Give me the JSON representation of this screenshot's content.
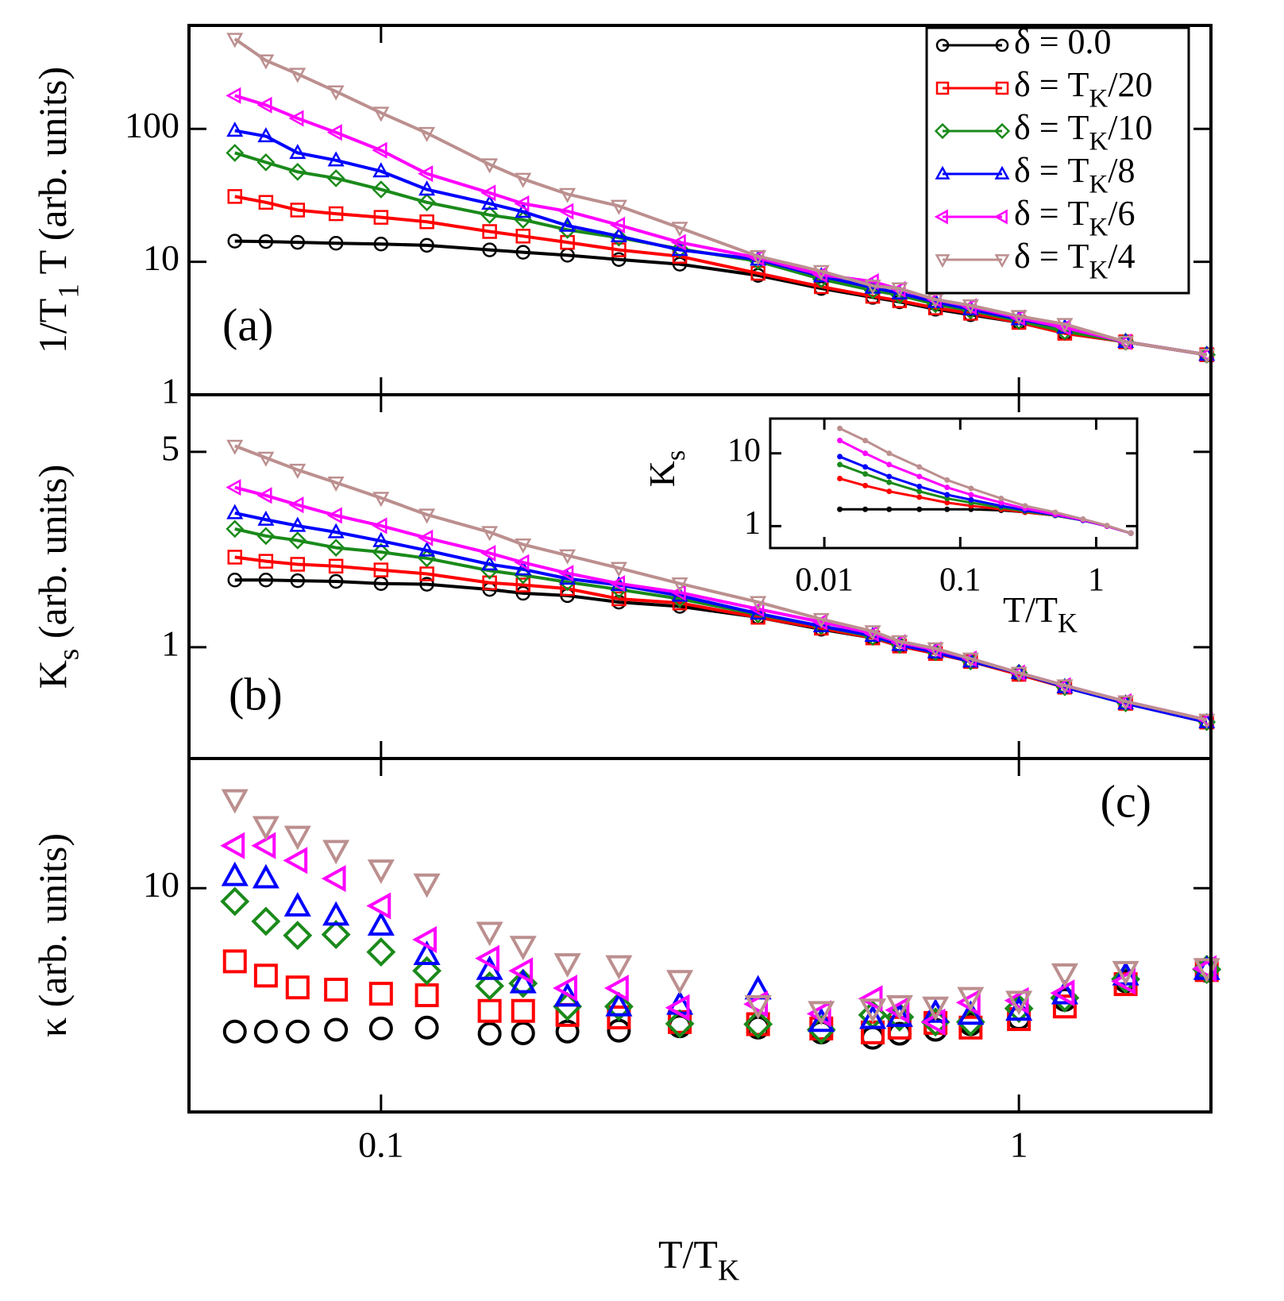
{
  "chart_data": [
    {
      "type": "line",
      "label": "(a)",
      "ylabel": [
        "1/T",
        "1",
        " T (arb. units)"
      ],
      "log_x": true,
      "log_y": true,
      "xlim": [
        0.05,
        2
      ],
      "ylim": [
        1,
        600
      ],
      "yticks": [
        1,
        10,
        100
      ],
      "legend": "upper right",
      "x": [
        0.059,
        0.066,
        0.074,
        0.085,
        0.1,
        0.118,
        0.148,
        0.167,
        0.196,
        0.236,
        0.294,
        0.39,
        0.49,
        0.59,
        0.65,
        0.74,
        0.84,
        1,
        1.18,
        1.47,
        1.97
      ],
      "series": [
        {
          "name": [
            "δ = 0.0"
          ],
          "color": "#000000",
          "marker": "circle",
          "values": [
            14.3,
            14.2,
            14.0,
            13.8,
            13.6,
            13.3,
            12.3,
            11.8,
            11.2,
            10.4,
            9.6,
            7.9,
            6.3,
            5.4,
            5.0,
            4.4,
            4.0,
            3.5,
            2.9,
            2.5,
            2.0
          ]
        },
        {
          "name": [
            "δ = T",
            "K",
            "/20"
          ],
          "color": "#ff0000",
          "marker": "square",
          "values": [
            31,
            28,
            24.5,
            23,
            21.6,
            20,
            16.9,
            15.6,
            14,
            12.3,
            11,
            8.2,
            6.5,
            5.5,
            5.1,
            4.5,
            4.1,
            3.5,
            2.9,
            2.5,
            2.0
          ]
        },
        {
          "name": [
            "δ = T",
            "K",
            "/10"
          ],
          "color": "#1a8a1a",
          "marker": "diamond",
          "values": [
            66,
            56,
            47.5,
            42.5,
            35,
            28,
            22.5,
            20.7,
            17.4,
            15.2,
            12.5,
            10.1,
            7.4,
            6.1,
            5.6,
            4.8,
            4.3,
            3.6,
            3.0,
            2.5,
            2.0
          ]
        },
        {
          "name": [
            "δ = T",
            "K",
            "/8"
          ],
          "color": "#0000ff",
          "marker": "triangle-up",
          "values": [
            97,
            88,
            66,
            58,
            48,
            35,
            27.4,
            23.8,
            18.7,
            15.6,
            12.3,
            10.4,
            7.8,
            6.4,
            5.8,
            5.0,
            4.4,
            3.7,
            3.2,
            2.5,
            2.0
          ]
        },
        {
          "name": [
            "δ = T",
            "K",
            "/6"
          ],
          "color": "#ff00ff",
          "marker": "triangle-left",
          "values": [
            178,
            151,
            120,
            94,
            69,
            46,
            33,
            27.4,
            24,
            18.9,
            14,
            10.7,
            8.0,
            7.1,
            6.2,
            5.2,
            4.6,
            3.8,
            3.2,
            2.5,
            2.0
          ]
        },
        {
          "name": [
            "δ = T",
            "K",
            "/4"
          ],
          "color": "#bc8f8f",
          "marker": "triangle-down",
          "values": [
            475,
            327,
            259,
            191,
            132,
            93,
            54,
            42,
            32.3,
            26.3,
            18,
            11,
            8.5,
            6.6,
            6.3,
            5.2,
            4.7,
            3.9,
            3.4,
            2.5,
            2.0
          ]
        }
      ]
    },
    {
      "type": "line",
      "label": "(b)",
      "ylabel": [
        "K",
        "s",
        " (arb. units)"
      ],
      "log_x": true,
      "log_y": true,
      "xlim": [
        0.05,
        2
      ],
      "ylim": [
        0.4,
        8
      ],
      "yticks": [
        1,
        5
      ],
      "x": [
        0.059,
        0.066,
        0.074,
        0.085,
        0.1,
        0.118,
        0.148,
        0.167,
        0.196,
        0.236,
        0.294,
        0.39,
        0.49,
        0.59,
        0.65,
        0.74,
        0.84,
        1,
        1.18,
        1.47,
        1.97
      ],
      "series": [
        {
          "color": "#000000",
          "marker": "circle",
          "values": [
            1.74,
            1.74,
            1.73,
            1.72,
            1.69,
            1.68,
            1.61,
            1.56,
            1.53,
            1.45,
            1.4,
            1.28,
            1.16,
            1.08,
            1.01,
            0.95,
            0.89,
            0.8,
            0.72,
            0.63,
            0.54
          ]
        },
        {
          "color": "#ff0000",
          "marker": "square",
          "values": [
            2.1,
            2.03,
            1.98,
            1.95,
            1.89,
            1.83,
            1.7,
            1.67,
            1.62,
            1.49,
            1.44,
            1.28,
            1.17,
            1.08,
            1.01,
            0.95,
            0.89,
            0.8,
            0.72,
            0.63,
            0.54
          ]
        },
        {
          "color": "#1a8a1a",
          "marker": "diamond",
          "values": [
            2.65,
            2.5,
            2.41,
            2.27,
            2.19,
            2.08,
            1.88,
            1.81,
            1.71,
            1.61,
            1.49,
            1.31,
            1.19,
            1.09,
            1.02,
            0.96,
            0.89,
            0.81,
            0.72,
            0.63,
            0.54
          ]
        },
        {
          "color": "#0000ff",
          "marker": "triangle-up",
          "values": [
            3.02,
            2.86,
            2.72,
            2.58,
            2.4,
            2.22,
            1.98,
            1.9,
            1.76,
            1.67,
            1.53,
            1.32,
            1.19,
            1.1,
            1.02,
            0.96,
            0.89,
            0.81,
            0.72,
            0.63,
            0.54
          ]
        },
        {
          "color": "#ff00ff",
          "marker": "triangle-left",
          "values": [
            3.73,
            3.49,
            3.23,
            2.96,
            2.72,
            2.46,
            2.17,
            2.01,
            1.84,
            1.69,
            1.57,
            1.37,
            1.23,
            1.12,
            1.04,
            0.98,
            0.91,
            0.81,
            0.73,
            0.64,
            0.55
          ]
        },
        {
          "color": "#bc8f8f",
          "marker": "triangle-down",
          "values": [
            5.25,
            4.76,
            4.31,
            3.88,
            3.42,
            2.98,
            2.58,
            2.33,
            2.13,
            1.92,
            1.69,
            1.45,
            1.26,
            1.14,
            1.05,
            0.99,
            0.91,
            0.81,
            0.73,
            0.64,
            0.55
          ]
        }
      ]
    },
    {
      "type": "scatter",
      "label": "(c)",
      "ylabel": [
        "κ (arb. units)"
      ],
      "xlabel": [
        "T/T",
        "K"
      ],
      "log_x": true,
      "log_y": true,
      "xlim": [
        0.05,
        2
      ],
      "ylim": [
        4,
        17
      ],
      "xticks": [
        0.1,
        1
      ],
      "yticks": [
        10
      ],
      "x": [
        0.059,
        0.066,
        0.074,
        0.085,
        0.1,
        0.118,
        0.148,
        0.167,
        0.196,
        0.236,
        0.294,
        0.39,
        0.49,
        0.59,
        0.65,
        0.74,
        0.84,
        1,
        1.18,
        1.47,
        1.97
      ],
      "series": [
        {
          "color": "#000000",
          "marker": "circle",
          "values": [
            5.56,
            5.56,
            5.56,
            5.6,
            5.63,
            5.65,
            5.51,
            5.52,
            5.56,
            5.58,
            5.68,
            5.65,
            5.54,
            5.42,
            5.51,
            5.6,
            5.73,
            5.87,
            6.33,
            6.83,
            7.13
          ]
        },
        {
          "color": "#ff0000",
          "marker": "square",
          "values": [
            7.41,
            6.99,
            6.66,
            6.6,
            6.49,
            6.45,
            6.05,
            6.05,
            5.95,
            5.89,
            5.78,
            5.73,
            5.63,
            5.54,
            5.65,
            5.76,
            5.65,
            5.85,
            6.16,
            6.75,
            7.15
          ]
        },
        {
          "color": "#1a8a1a",
          "marker": "diamond",
          "values": [
            9.47,
            8.73,
            8.24,
            8.27,
            7.7,
            7.13,
            6.7,
            6.77,
            6.16,
            6.16,
            5.74,
            5.73,
            5.6,
            5.95,
            5.9,
            5.78,
            5.78,
            6.11,
            6.38,
            6.89,
            7.17
          ]
        },
        {
          "color": "#0000ff",
          "marker": "triangle-up",
          "values": [
            10.5,
            10.4,
            9.27,
            8.93,
            8.57,
            7.6,
            7.15,
            6.77,
            6.41,
            6.16,
            6.2,
            6.6,
            5.78,
            5.85,
            5.9,
            6.0,
            5.95,
            6.05,
            6.47,
            6.99,
            7.15
          ]
        },
        {
          "color": "#ff00ff",
          "marker": "triangle-left",
          "values": [
            11.9,
            11.9,
            11.2,
            10.4,
            9.3,
            8.1,
            7.5,
            7.13,
            6.64,
            6.64,
            6.13,
            6.22,
            5.98,
            6.36,
            6.07,
            5.78,
            6.26,
            6.31,
            6.51,
            6.83,
            7.19
          ]
        },
        {
          "color": "#bc8f8f",
          "marker": "triangle-down",
          "values": [
            14.4,
            12.9,
            12.4,
            11.7,
            10.8,
            10.2,
            8.37,
            7.9,
            7.36,
            7.3,
            6.87,
            6.2,
            6.05,
            6.11,
            6.2,
            6.16,
            6.41,
            6.31,
            7.06,
            7.13,
            7.21
          ]
        }
      ]
    },
    {
      "type": "line",
      "ylabel": [
        "K",
        "s"
      ],
      "xlabel": [
        "T/T",
        "K"
      ],
      "log_x": true,
      "log_y": true,
      "xlim": [
        0.004,
        2
      ],
      "ylim": [
        0.5,
        30
      ],
      "xticks": [
        0.01,
        0.1,
        1
      ],
      "yticks": [
        1,
        10
      ],
      "x": [
        0.013,
        0.02,
        0.03,
        0.05,
        0.08,
        0.12,
        0.2,
        0.3,
        0.5,
        0.8,
        1.2,
        1.8
      ],
      "series": [
        {
          "color": "#000000",
          "values": [
            1.7,
            1.7,
            1.7,
            1.7,
            1.7,
            1.7,
            1.65,
            1.55,
            1.4,
            1.2,
            1.0,
            0.8
          ]
        },
        {
          "color": "#ff0000",
          "values": [
            4.5,
            3.6,
            3.0,
            2.5,
            2.1,
            1.9,
            1.7,
            1.55,
            1.4,
            1.2,
            1.0,
            0.8
          ]
        },
        {
          "color": "#1a8a1a",
          "values": [
            7,
            5.2,
            4.0,
            3.0,
            2.4,
            2.1,
            1.8,
            1.6,
            1.4,
            1.2,
            1.0,
            0.8
          ]
        },
        {
          "color": "#0000ff",
          "values": [
            9,
            6.5,
            4.8,
            3.5,
            2.7,
            2.3,
            1.9,
            1.65,
            1.42,
            1.2,
            1.0,
            0.8
          ]
        },
        {
          "color": "#ff00ff",
          "values": [
            15,
            10,
            7,
            4.8,
            3.4,
            2.7,
            2.1,
            1.75,
            1.45,
            1.22,
            1.0,
            0.8
          ]
        },
        {
          "color": "#bc8f8f",
          "values": [
            22,
            15,
            10,
            6.5,
            4.3,
            3.3,
            2.4,
            1.9,
            1.55,
            1.25,
            1.02,
            0.8
          ]
        }
      ]
    }
  ]
}
